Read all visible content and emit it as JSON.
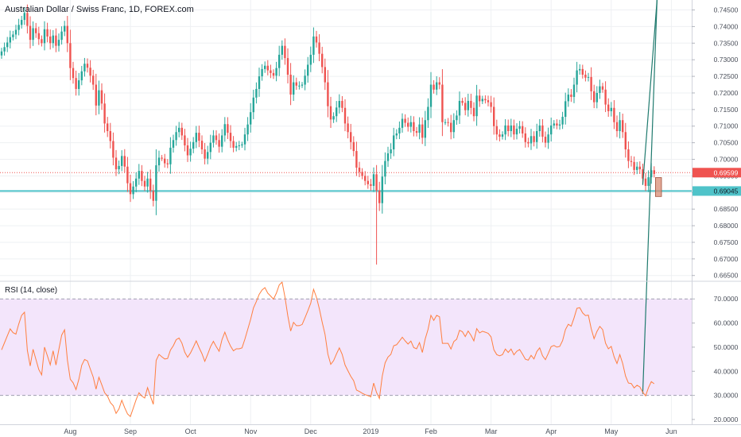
{
  "header": {
    "symbol_title": "Australian Dollar / Swiss Franc, 1D, FOREX.com",
    "rsi_title": "RSI (14, close)"
  },
  "colors": {
    "up": "#26a69a",
    "down": "#ef5350",
    "support_line": "#4fc3c9",
    "price_line": "#ef5350",
    "rsi_line": "#ff7f3f",
    "rsi_band": "#f3e5fb",
    "rsi_band_border": "#9e9eb0",
    "grid": "#eef0f3",
    "divergence_line": "#1f7a6e",
    "highlight_box": "#d98b73"
  },
  "chart_data": [
    {
      "type": "candlestick",
      "title": "Australian Dollar / Swiss Franc, 1D, FOREX.com",
      "ylim": [
        0.6635,
        0.748
      ],
      "y_ticks": [
        "0.74500",
        "0.74000",
        "0.73500",
        "0.73000",
        "0.72500",
        "0.72000",
        "0.71500",
        "0.71000",
        "0.70500",
        "0.70000",
        "0.69500",
        "0.69000",
        "0.68500",
        "0.68000",
        "0.67500",
        "0.67000",
        "0.66500"
      ],
      "x_ticks": [
        "Aug",
        "Sep",
        "Oct",
        "Nov",
        "Dec",
        "2019",
        "Feb",
        "Mar",
        "Apr",
        "May",
        "Jun"
      ],
      "x_tick_index": [
        24,
        45,
        66,
        87,
        108,
        129,
        150,
        171,
        192,
        213,
        234
      ],
      "close": [
        0.7325,
        0.7338,
        0.7352,
        0.7368,
        0.7376,
        0.739,
        0.7405,
        0.742,
        0.7441,
        0.7402,
        0.736,
        0.7395,
        0.738,
        0.7362,
        0.735,
        0.7392,
        0.737,
        0.735,
        0.7373,
        0.7342,
        0.736,
        0.7385,
        0.7402,
        0.735,
        0.7275,
        0.7245,
        0.7212,
        0.7238,
        0.7265,
        0.7288,
        0.7276,
        0.7252,
        0.7225,
        0.7162,
        0.7208,
        0.7168,
        0.7108,
        0.7085,
        0.7055,
        0.7005,
        0.697,
        0.698,
        0.701,
        0.6978,
        0.6928,
        0.6895,
        0.6918,
        0.6942,
        0.6965,
        0.6935,
        0.6918,
        0.6942,
        0.6905,
        0.6875,
        0.6982,
        0.7005,
        0.7002,
        0.6988,
        0.6985,
        0.7035,
        0.7058,
        0.7082,
        0.7095,
        0.7072,
        0.7042,
        0.7012,
        0.7032,
        0.7052,
        0.708,
        0.7056,
        0.703,
        0.7002,
        0.7022,
        0.705,
        0.7072,
        0.7058,
        0.7038,
        0.7072,
        0.7106,
        0.708,
        0.7055,
        0.7035,
        0.704,
        0.7042,
        0.7045,
        0.7075,
        0.7105,
        0.7142,
        0.7186,
        0.7212,
        0.725,
        0.7272,
        0.7282,
        0.7268,
        0.726,
        0.7252,
        0.7275,
        0.7315,
        0.7342,
        0.7305,
        0.7255,
        0.7195,
        0.7232,
        0.7222,
        0.7222,
        0.7225,
        0.7252,
        0.7285,
        0.7315,
        0.737,
        0.7352,
        0.7318,
        0.7278,
        0.7232,
        0.716,
        0.712,
        0.713,
        0.7156,
        0.7176,
        0.7155,
        0.7108,
        0.7082,
        0.7052,
        0.7025,
        0.6975,
        0.6962,
        0.695,
        0.6935,
        0.6925,
        0.692,
        0.6955,
        0.6906,
        0.6868,
        0.6948,
        0.6995,
        0.7018,
        0.703,
        0.7072,
        0.7078,
        0.7095,
        0.7122,
        0.711,
        0.7098,
        0.7112,
        0.7085,
        0.708,
        0.7105,
        0.7065,
        0.7118,
        0.7158,
        0.7225,
        0.721,
        0.7232,
        0.7225,
        0.7112,
        0.7112,
        0.711,
        0.7082,
        0.7118,
        0.7132,
        0.7176,
        0.717,
        0.7148,
        0.7176,
        0.7155,
        0.713,
        0.7192,
        0.7175,
        0.7182,
        0.7178,
        0.7172,
        0.7158,
        0.71,
        0.7075,
        0.7068,
        0.7075,
        0.7102,
        0.7085,
        0.7102,
        0.7075,
        0.7092,
        0.71,
        0.7078,
        0.7052,
        0.7048,
        0.707,
        0.7052,
        0.7085,
        0.7102,
        0.7068,
        0.705,
        0.7075,
        0.7102,
        0.7108,
        0.7102,
        0.7105,
        0.7128,
        0.7175,
        0.7195,
        0.7188,
        0.7225,
        0.7268,
        0.7272,
        0.7255,
        0.7246,
        0.7248,
        0.7205,
        0.7172,
        0.72,
        0.722,
        0.721,
        0.7165,
        0.7145,
        0.7155,
        0.7112,
        0.7085,
        0.7118,
        0.7082,
        0.703,
        0.6995,
        0.6992,
        0.6968,
        0.6978,
        0.697,
        0.6942,
        0.692,
        0.6946,
        0.6967,
        0.6956
      ]
    },
    {
      "type": "line",
      "title": "RSI (14, close)",
      "ylim": [
        18,
        77
      ],
      "y_ticks": [
        "70.0000",
        "60.0000",
        "50.0000",
        "40.0000",
        "30.0000",
        "20.0000"
      ],
      "band": [
        30,
        70
      ],
      "values": [
        48.9,
        51.8,
        54.7,
        57.6,
        56.0,
        55.4,
        59.6,
        63.2,
        64.5,
        48.7,
        42.2,
        49.1,
        44.9,
        40.7,
        38.5,
        50.0,
        46.4,
        42.7,
        48.5,
        42.6,
        49.0,
        55.0,
        57.2,
        44.6,
        36.7,
        35.2,
        32.4,
        36.7,
        42.5,
        44.9,
        44.3,
        40.9,
        37.6,
        32.6,
        37.5,
        34.4,
        31.1,
        29.7,
        27.0,
        25.7,
        22.5,
        24.4,
        28.0,
        24.9,
        22.3,
        21.2,
        24.7,
        28.2,
        31.1,
        29.7,
        28.9,
        33.2,
        29.6,
        26.3,
        44.5,
        47.0,
        46.0,
        45.1,
        45.3,
        48.8,
        50.6,
        53.1,
        53.8,
        51.7,
        47.9,
        45.8,
        47.6,
        50.0,
        52.6,
        49.8,
        47.3,
        44.1,
        47.0,
        50.2,
        52.4,
        50.2,
        48.3,
        53.1,
        56.2,
        53.0,
        50.4,
        48.5,
        49.3,
        49.3,
        49.7,
        53.3,
        57.4,
        61.5,
        66.3,
        68.9,
        71.9,
        73.7,
        74.7,
        72.4,
        71.2,
        69.9,
        72.4,
        75.8,
        77.0,
        70.8,
        63.0,
        56.7,
        60.3,
        58.9,
        58.9,
        59.4,
        62.2,
        65.1,
        68.2,
        74.0,
        70.7,
        66.0,
        60.4,
        55.3,
        47.1,
        42.9,
        44.4,
        47.2,
        49.7,
        47.0,
        42.6,
        40.2,
        37.9,
        36.1,
        32.2,
        31.6,
        30.9,
        30.3,
        29.9,
        29.4,
        35.1,
        31.2,
        28.7,
        38.0,
        43.5,
        45.9,
        47.0,
        50.6,
        51.0,
        52.5,
        54.1,
        52.6,
        51.3,
        52.5,
        49.8,
        49.3,
        51.9,
        47.8,
        53.4,
        57.4,
        63.2,
        61.1,
        63.2,
        62.6,
        51.6,
        51.6,
        51.6,
        49.2,
        52.3,
        53.3,
        57.0,
        56.4,
        54.4,
        56.7,
        54.9,
        52.6,
        57.7,
        55.9,
        56.6,
        56.2,
        55.7,
        54.3,
        48.9,
        46.9,
        46.4,
        46.9,
        49.2,
        47.8,
        49.2,
        46.8,
        48.3,
        49.0,
        47.1,
        45.0,
        44.6,
        46.6,
        45.1,
        48.2,
        49.7,
        46.4,
        44.8,
        47.4,
        50.2,
        50.7,
        50.0,
        50.3,
        52.7,
        57.3,
        59.5,
        58.7,
        62.1,
        66.1,
        66.4,
        64.2,
        63.1,
        63.3,
        57.7,
        53.5,
        56.5,
        58.6,
        57.3,
        51.7,
        49.3,
        50.3,
        46.0,
        43.2,
        46.9,
        43.2,
        38.0,
        35.1,
        34.9,
        33.1,
        34.2,
        33.5,
        31.3,
        29.8,
        33.2,
        35.7,
        34.8
      ]
    }
  ],
  "price_axis": {
    "current_price_label": "0.69599",
    "support_label": "0.69045"
  },
  "support_level": 0.69045,
  "current_price": 0.69599,
  "annotations": {
    "price_divergence_from_index": 224,
    "price_divergence_to_index": 229,
    "highlight_box_index": [
      229,
      230
    ],
    "highlight_box_price": [
      0.6888,
      0.6945
    ],
    "rsi_divergence_from_index": 224,
    "rsi_divergence_to_index": 229
  }
}
